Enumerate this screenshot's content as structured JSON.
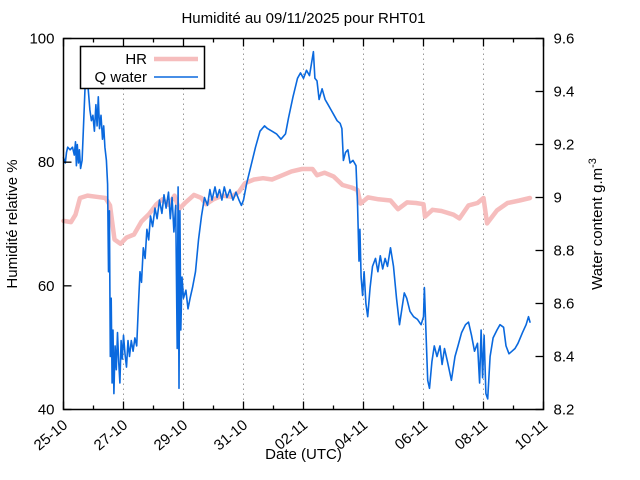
{
  "chart_data": {
    "type": "line",
    "title": "Humidité au 09/11/2025 pour RHT01",
    "xlabel": "Date (UTC)",
    "ylabel_left": "Humidité relative %",
    "ylabel_right": "Water content g.m",
    "ylabel_right_sup": "-3",
    "x_axis": {
      "unit": "days since 25-10 00:00 UTC",
      "range": [
        0,
        16
      ],
      "major_tick_days": [
        0,
        2,
        4,
        6,
        8,
        10,
        12,
        14,
        16
      ],
      "tick_labels": [
        "25-10",
        "27-10",
        "29-10",
        "31-10",
        "02-11",
        "04-11",
        "06-11",
        "08-11",
        "10-11"
      ],
      "minor_tick_days": [
        1,
        3,
        5,
        7,
        9,
        11,
        13,
        15
      ],
      "grid": "vertical dotted lines at labeled ticks",
      "grid_color": "#9c9c9c"
    },
    "y_left": {
      "range": [
        40,
        100
      ],
      "tick_labels": [
        "40",
        "60",
        "80",
        "100"
      ],
      "tick_values": [
        40,
        60,
        80,
        100
      ]
    },
    "y_right": {
      "range": [
        8.2,
        9.6
      ],
      "tick_labels": [
        "8.2",
        "8.4",
        "8.6",
        "8.8",
        "9",
        "9.2",
        "9.4",
        "9.6"
      ],
      "tick_values": [
        8.2,
        8.4,
        8.6,
        8.8,
        9.0,
        9.2,
        9.4,
        9.6
      ]
    },
    "legend": {
      "position": "top-left",
      "entries": [
        {
          "label": "HR",
          "color": "#f6bdbd"
        },
        {
          "label": "Q water",
          "color": "#0a69de"
        }
      ]
    },
    "series": [
      {
        "name": "HR",
        "axis": "left",
        "unit": "%",
        "color": "#f6bdbd",
        "line_width": 4.5,
        "points": [
          [
            0,
            70.5
          ],
          [
            0.25,
            70.3
          ],
          [
            0.4,
            71.5
          ],
          [
            0.55,
            74.2
          ],
          [
            0.8,
            74.6
          ],
          [
            1.1,
            74.4
          ],
          [
            1.4,
            74.2
          ],
          [
            1.55,
            73
          ],
          [
            1.7,
            67.5
          ],
          [
            1.9,
            66.8
          ],
          [
            2.1,
            67.8
          ],
          [
            2.35,
            68.3
          ],
          [
            2.6,
            70.4
          ],
          [
            2.85,
            71.6
          ],
          [
            3.1,
            73.2
          ],
          [
            3.3,
            74
          ],
          [
            3.5,
            73.1
          ],
          [
            3.7,
            74.6
          ],
          [
            3.85,
            72.4
          ],
          [
            4.05,
            73.4
          ],
          [
            4.35,
            74.7
          ],
          [
            4.6,
            74.2
          ],
          [
            4.75,
            73.2
          ],
          [
            5,
            74
          ],
          [
            5.3,
            74.6
          ],
          [
            5.6,
            74.4
          ],
          [
            5.85,
            75.2
          ],
          [
            6.05,
            76.6
          ],
          [
            6.35,
            77.2
          ],
          [
            6.65,
            77.4
          ],
          [
            6.95,
            77.2
          ],
          [
            7.25,
            77.8
          ],
          [
            7.6,
            78.5
          ],
          [
            7.95,
            78.9
          ],
          [
            8.3,
            78.9
          ],
          [
            8.45,
            77.9
          ],
          [
            8.7,
            78.3
          ],
          [
            9,
            77.7
          ],
          [
            9.3,
            76.3
          ],
          [
            9.6,
            75.9
          ],
          [
            9.8,
            75.5
          ],
          [
            9.9,
            73.3
          ],
          [
            10.15,
            74.3
          ],
          [
            10.5,
            74
          ],
          [
            10.9,
            73.8
          ],
          [
            11.15,
            72.4
          ],
          [
            11.45,
            73.5
          ],
          [
            11.75,
            73.4
          ],
          [
            12,
            73.2
          ],
          [
            12.05,
            71.2
          ],
          [
            12.3,
            72.3
          ],
          [
            12.6,
            72.1
          ],
          [
            13,
            71.5
          ],
          [
            13.2,
            70.9
          ],
          [
            13.5,
            73
          ],
          [
            13.8,
            73.4
          ],
          [
            14,
            74.2
          ],
          [
            14.12,
            70.1
          ],
          [
            14.45,
            72.2
          ],
          [
            14.8,
            73.4
          ],
          [
            15.2,
            73.8
          ],
          [
            15.55,
            74.2
          ]
        ]
      },
      {
        "name": "Q water",
        "axis": "right",
        "unit": "g.m-3",
        "color": "#0a69de",
        "line_width": 1.6,
        "points": [
          [
            0,
            9.15
          ],
          [
            0.06,
            9.13
          ],
          [
            0.1,
            9.17
          ],
          [
            0.14,
            9.19
          ],
          [
            0.22,
            9.18
          ],
          [
            0.3,
            9.19
          ],
          [
            0.36,
            9.16
          ],
          [
            0.4,
            9.21
          ],
          [
            0.43,
            9.12
          ],
          [
            0.46,
            9.2
          ],
          [
            0.5,
            9.13
          ],
          [
            0.53,
            9.18
          ],
          [
            0.57,
            9.11
          ],
          [
            0.62,
            9.14
          ],
          [
            0.66,
            9.25
          ],
          [
            0.72,
            9.42
          ],
          [
            0.76,
            9.53
          ],
          [
            0.79,
            9.46
          ],
          [
            0.83,
            9.4
          ],
          [
            0.88,
            9.33
          ],
          [
            0.93,
            9.29
          ],
          [
            0.98,
            9.31
          ],
          [
            1.03,
            9.25
          ],
          [
            1.08,
            9.35
          ],
          [
            1.12,
            9.27
          ],
          [
            1.16,
            9.38
          ],
          [
            1.2,
            9.26
          ],
          [
            1.25,
            9.31
          ],
          [
            1.3,
            9.22
          ],
          [
            1.34,
            9.27
          ],
          [
            1.38,
            9.19
          ],
          [
            1.43,
            9.14
          ],
          [
            1.47,
            9.05
          ],
          [
            1.5,
            8.72
          ],
          [
            1.53,
            8.95
          ],
          [
            1.56,
            8.4
          ],
          [
            1.59,
            8.62
          ],
          [
            1.62,
            8.3
          ],
          [
            1.65,
            8.5
          ],
          [
            1.68,
            8.26
          ],
          [
            1.72,
            8.44
          ],
          [
            1.76,
            8.35
          ],
          [
            1.8,
            8.49
          ],
          [
            1.84,
            8.38
          ],
          [
            1.88,
            8.3
          ],
          [
            1.92,
            8.46
          ],
          [
            1.96,
            8.39
          ],
          [
            2,
            8.48
          ],
          [
            2.05,
            8.41
          ],
          [
            2.1,
            8.36
          ],
          [
            2.15,
            8.46
          ],
          [
            2.2,
            8.4
          ],
          [
            2.26,
            8.46
          ],
          [
            2.32,
            8.42
          ],
          [
            2.38,
            8.47
          ],
          [
            2.44,
            8.44
          ],
          [
            2.5,
            8.6
          ],
          [
            2.55,
            8.72
          ],
          [
            2.6,
            8.68
          ],
          [
            2.66,
            8.81
          ],
          [
            2.72,
            8.77
          ],
          [
            2.78,
            8.88
          ],
          [
            2.84,
            8.84
          ],
          [
            2.9,
            8.93
          ],
          [
            2.97,
            8.89
          ],
          [
            3.05,
            8.96
          ],
          [
            3.12,
            8.92
          ],
          [
            3.2,
            8.99
          ],
          [
            3.28,
            8.94
          ],
          [
            3.35,
            9.01
          ],
          [
            3.42,
            8.96
          ],
          [
            3.5,
            9.02
          ],
          [
            3.56,
            8.92
          ],
          [
            3.62,
            9
          ],
          [
            3.68,
            8.87
          ],
          [
            3.74,
            8.97
          ],
          [
            3.79,
            8.43
          ],
          [
            3.82,
            9.04
          ],
          [
            3.85,
            8.28
          ],
          [
            3.88,
            8.95
          ],
          [
            3.91,
            8.5
          ],
          [
            3.95,
            8.7
          ],
          [
            4,
            8.62
          ],
          [
            4.08,
            8.65
          ],
          [
            4.15,
            8.58
          ],
          [
            4.22,
            8.62
          ],
          [
            4.3,
            8.66
          ],
          [
            4.4,
            8.72
          ],
          [
            4.5,
            8.84
          ],
          [
            4.6,
            8.93
          ],
          [
            4.7,
            9
          ],
          [
            4.8,
            8.97
          ],
          [
            4.88,
            9.03
          ],
          [
            4.95,
            8.99
          ],
          [
            5.05,
            9.04
          ],
          [
            5.12,
            9
          ],
          [
            5.2,
            9.03
          ],
          [
            5.28,
            8.99
          ],
          [
            5.36,
            9.04
          ],
          [
            5.45,
            9
          ],
          [
            5.55,
            9.03
          ],
          [
            5.65,
            8.99
          ],
          [
            5.75,
            9.02
          ],
          [
            5.85,
            8.99
          ],
          [
            5.93,
            8.97
          ],
          [
            6,
            8.99
          ],
          [
            6.1,
            9.05
          ],
          [
            6.25,
            9.12
          ],
          [
            6.4,
            9.19
          ],
          [
            6.55,
            9.25
          ],
          [
            6.7,
            9.27
          ],
          [
            6.8,
            9.26
          ],
          [
            6.95,
            9.25
          ],
          [
            7.1,
            9.24
          ],
          [
            7.25,
            9.22
          ],
          [
            7.4,
            9.24
          ],
          [
            7.5,
            9.3
          ],
          [
            7.65,
            9.38
          ],
          [
            7.8,
            9.45
          ],
          [
            7.9,
            9.47
          ],
          [
            8,
            9.45
          ],
          [
            8.1,
            9.48
          ],
          [
            8.2,
            9.46
          ],
          [
            8.33,
            9.55
          ],
          [
            8.38,
            9.45
          ],
          [
            8.45,
            9.44
          ],
          [
            8.52,
            9.37
          ],
          [
            8.62,
            9.41
          ],
          [
            8.72,
            9.37
          ],
          [
            8.82,
            9.35
          ],
          [
            8.92,
            9.33
          ],
          [
            9.02,
            9.31
          ],
          [
            9.12,
            9.29
          ],
          [
            9.22,
            9.28
          ],
          [
            9.28,
            9.26
          ],
          [
            9.33,
            9.14
          ],
          [
            9.4,
            9.17
          ],
          [
            9.48,
            9.18
          ],
          [
            9.55,
            9.13
          ],
          [
            9.65,
            9.14
          ],
          [
            9.75,
            9.12
          ],
          [
            9.8,
            8.98
          ],
          [
            9.85,
            8.76
          ],
          [
            9.88,
            8.88
          ],
          [
            9.92,
            8.7
          ],
          [
            9.97,
            8.63
          ],
          [
            10.02,
            8.72
          ],
          [
            10.08,
            8.6
          ],
          [
            10.14,
            8.55
          ],
          [
            10.22,
            8.66
          ],
          [
            10.3,
            8.74
          ],
          [
            10.4,
            8.77
          ],
          [
            10.48,
            8.72
          ],
          [
            10.56,
            8.78
          ],
          [
            10.64,
            8.73
          ],
          [
            10.72,
            8.77
          ],
          [
            10.8,
            8.74
          ],
          [
            10.9,
            8.81
          ],
          [
            11,
            8.74
          ],
          [
            11.1,
            8.62
          ],
          [
            11.2,
            8.52
          ],
          [
            11.28,
            8.58
          ],
          [
            11.36,
            8.64
          ],
          [
            11.44,
            8.62
          ],
          [
            11.55,
            8.57
          ],
          [
            11.67,
            8.55
          ],
          [
            11.8,
            8.54
          ],
          [
            11.92,
            8.52
          ],
          [
            12,
            8.55
          ],
          [
            12.03,
            8.66
          ],
          [
            12.08,
            8.5
          ],
          [
            12.14,
            8.31
          ],
          [
            12.2,
            8.28
          ],
          [
            12.28,
            8.38
          ],
          [
            12.36,
            8.44
          ],
          [
            12.45,
            8.4
          ],
          [
            12.55,
            8.44
          ],
          [
            12.62,
            8.37
          ],
          [
            12.7,
            8.43
          ],
          [
            12.8,
            8.38
          ],
          [
            12.93,
            8.31
          ],
          [
            13.05,
            8.4
          ],
          [
            13.15,
            8.44
          ],
          [
            13.27,
            8.49
          ],
          [
            13.4,
            8.52
          ],
          [
            13.5,
            8.53
          ],
          [
            13.6,
            8.48
          ],
          [
            13.7,
            8.42
          ],
          [
            13.8,
            8.45
          ],
          [
            13.87,
            8.3
          ],
          [
            13.92,
            8.5
          ],
          [
            13.97,
            8.32
          ],
          [
            14.02,
            8.48
          ],
          [
            14.08,
            8.26
          ],
          [
            14.14,
            8.24
          ],
          [
            14.22,
            8.4
          ],
          [
            14.32,
            8.47
          ],
          [
            14.45,
            8.5
          ],
          [
            14.55,
            8.52
          ],
          [
            14.67,
            8.51
          ],
          [
            14.75,
            8.44
          ],
          [
            14.85,
            8.41
          ],
          [
            14.95,
            8.42
          ],
          [
            15.05,
            8.43
          ],
          [
            15.15,
            8.45
          ],
          [
            15.3,
            8.49
          ],
          [
            15.42,
            8.52
          ],
          [
            15.5,
            8.55
          ],
          [
            15.55,
            8.53
          ]
        ]
      }
    ]
  }
}
